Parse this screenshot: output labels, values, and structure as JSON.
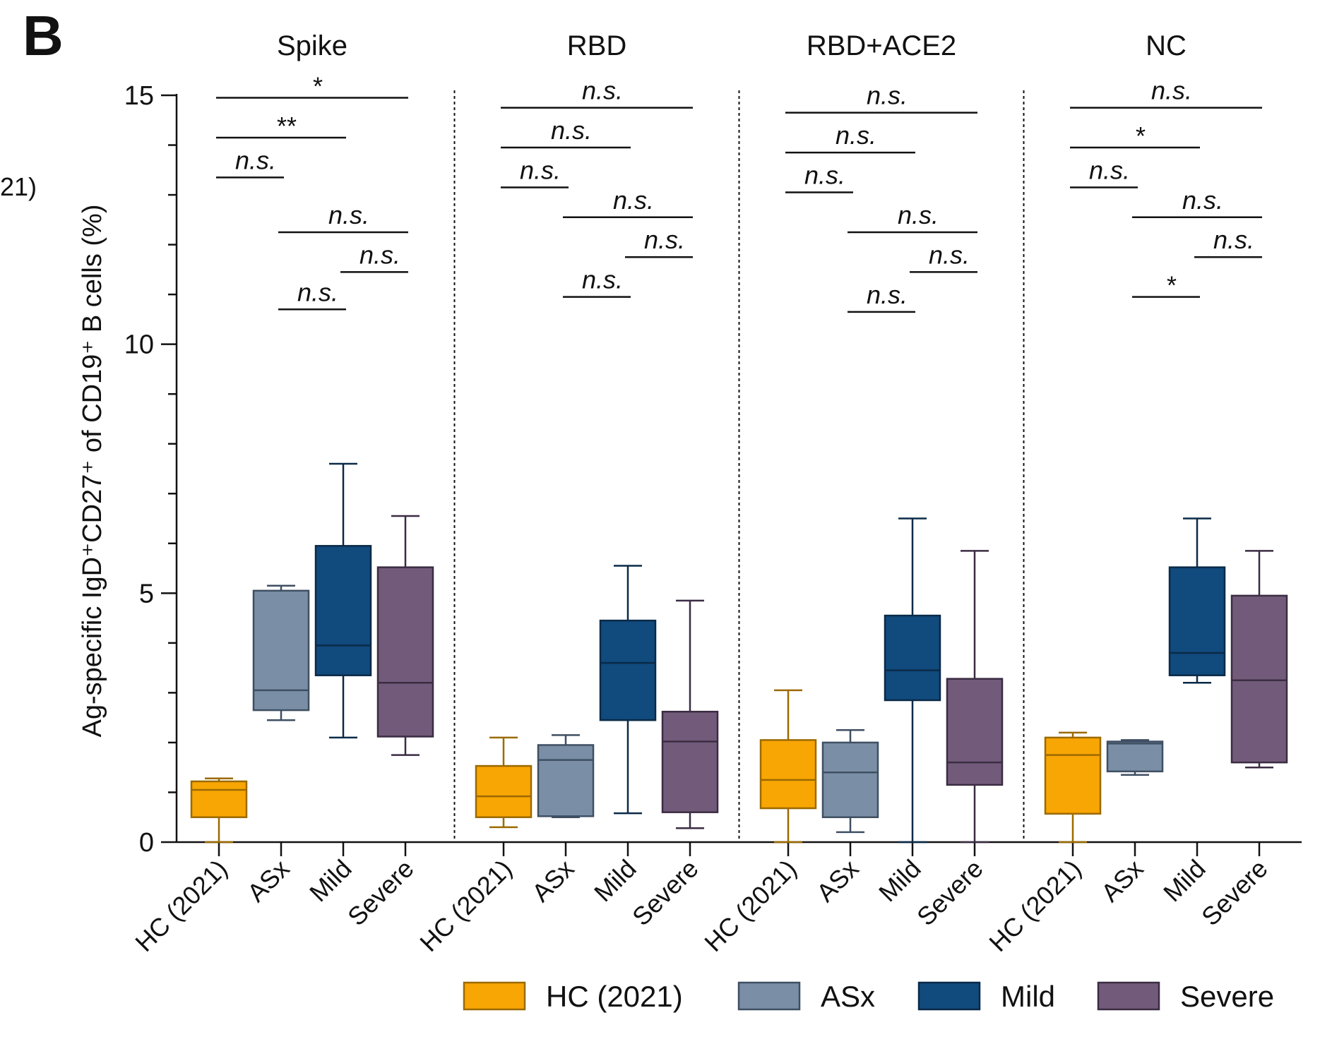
{
  "panel_letter": "B",
  "edge_fragment": "21)",
  "chart_data": {
    "type": "box",
    "ylabel": "Ag-specific IgD⁺CD27⁺ of CD19⁺ B cells (%)",
    "ylim": [
      0,
      15
    ],
    "yticks": [
      0,
      5,
      10,
      15
    ],
    "grid": false,
    "legend_position": "bottom-right",
    "groups": [
      "HC (2021)",
      "ASx",
      "Mild",
      "Severe"
    ],
    "colors": {
      "HC (2021)": "#F8A604",
      "ASx": "#7A8FA6",
      "Mild": "#114A7D",
      "Severe": "#725B7A"
    },
    "stroke_colors": {
      "HC (2021)": "#9C6A00",
      "ASx": "#3F4F63",
      "Mild": "#0A2A48",
      "Severe": "#3B2C42"
    },
    "panels": [
      {
        "title": "Spike",
        "boxes": [
          {
            "group": "HC (2021)",
            "min": 0,
            "q1": 0.5,
            "median": 1.05,
            "q3": 1.22,
            "max": 1.28
          },
          {
            "group": "ASx",
            "min": 2.45,
            "q1": 2.65,
            "median": 3.05,
            "q3": 5.05,
            "max": 5.15
          },
          {
            "group": "Mild",
            "min": 2.1,
            "q1": 3.35,
            "median": 3.95,
            "q3": 5.95,
            "max": 7.6
          },
          {
            "group": "Severe",
            "min": 1.75,
            "q1": 2.12,
            "median": 3.2,
            "q3": 5.52,
            "max": 6.55
          }
        ],
        "comparisons": [
          {
            "a": 0,
            "b": 3,
            "y": 14.95,
            "label": "*"
          },
          {
            "a": 0,
            "b": 2,
            "y": 14.15,
            "label": "**"
          },
          {
            "a": 0,
            "b": 1,
            "y": 13.35,
            "label": "n.s."
          },
          {
            "a": 1,
            "b": 3,
            "y": 12.25,
            "label": "n.s."
          },
          {
            "a": 2,
            "b": 3,
            "y": 11.45,
            "label": "n.s."
          },
          {
            "a": 1,
            "b": 2,
            "y": 10.7,
            "label": "n.s."
          }
        ]
      },
      {
        "title": "RBD",
        "boxes": [
          {
            "group": "HC (2021)",
            "min": 0.3,
            "q1": 0.5,
            "median": 0.92,
            "q3": 1.53,
            "max": 2.1
          },
          {
            "group": "ASx",
            "min": 0.5,
            "q1": 0.52,
            "median": 1.65,
            "q3": 1.95,
            "max": 2.15
          },
          {
            "group": "Mild",
            "min": 0.58,
            "q1": 2.45,
            "median": 3.6,
            "q3": 4.45,
            "max": 5.55
          },
          {
            "group": "Severe",
            "min": 0.28,
            "q1": 0.6,
            "median": 2.02,
            "q3": 2.62,
            "max": 4.85
          }
        ],
        "comparisons": [
          {
            "a": 0,
            "b": 3,
            "y": 14.75,
            "label": "n.s."
          },
          {
            "a": 0,
            "b": 2,
            "y": 13.95,
            "label": "n.s."
          },
          {
            "a": 0,
            "b": 1,
            "y": 13.15,
            "label": "n.s."
          },
          {
            "a": 1,
            "b": 3,
            "y": 12.55,
            "label": "n.s."
          },
          {
            "a": 2,
            "b": 3,
            "y": 11.75,
            "label": "n.s."
          },
          {
            "a": 1,
            "b": 2,
            "y": 10.95,
            "label": "n.s."
          }
        ]
      },
      {
        "title": "RBD+ACE2",
        "boxes": [
          {
            "group": "HC (2021)",
            "min": 0,
            "q1": 0.68,
            "median": 1.25,
            "q3": 2.05,
            "max": 3.05
          },
          {
            "group": "ASx",
            "min": 0.2,
            "q1": 0.5,
            "median": 1.4,
            "q3": 2.0,
            "max": 2.25
          },
          {
            "group": "Mild",
            "min": 0,
            "q1": 2.85,
            "median": 3.45,
            "q3": 4.55,
            "max": 6.5
          },
          {
            "group": "Severe",
            "min": 0,
            "q1": 1.15,
            "median": 1.6,
            "q3": 3.28,
            "max": 5.85
          }
        ],
        "comparisons": [
          {
            "a": 0,
            "b": 3,
            "y": 14.65,
            "label": "n.s."
          },
          {
            "a": 0,
            "b": 2,
            "y": 13.85,
            "label": "n.s."
          },
          {
            "a": 0,
            "b": 1,
            "y": 13.05,
            "label": "n.s."
          },
          {
            "a": 1,
            "b": 3,
            "y": 12.25,
            "label": "n.s."
          },
          {
            "a": 2,
            "b": 3,
            "y": 11.45,
            "label": "n.s."
          },
          {
            "a": 1,
            "b": 2,
            "y": 10.65,
            "label": "n.s."
          }
        ]
      },
      {
        "title": "NC",
        "boxes": [
          {
            "group": "HC (2021)",
            "min": 0,
            "q1": 0.57,
            "median": 1.75,
            "q3": 2.1,
            "max": 2.2
          },
          {
            "group": "ASx",
            "min": 1.35,
            "q1": 1.42,
            "median": 1.98,
            "q3": 2.02,
            "max": 2.05
          },
          {
            "group": "Mild",
            "min": 3.2,
            "q1": 3.35,
            "median": 3.8,
            "q3": 5.52,
            "max": 6.5
          },
          {
            "group": "Severe",
            "min": 1.5,
            "q1": 1.6,
            "median": 3.25,
            "q3": 4.95,
            "max": 5.85
          }
        ],
        "comparisons": [
          {
            "a": 0,
            "b": 3,
            "y": 14.75,
            "label": "n.s."
          },
          {
            "a": 0,
            "b": 2,
            "y": 13.95,
            "label": "*"
          },
          {
            "a": 0,
            "b": 1,
            "y": 13.15,
            "label": "n.s."
          },
          {
            "a": 1,
            "b": 3,
            "y": 12.55,
            "label": "n.s."
          },
          {
            "a": 2,
            "b": 3,
            "y": 11.75,
            "label": "n.s."
          },
          {
            "a": 1,
            "b": 2,
            "y": 10.95,
            "label": "*"
          }
        ]
      }
    ]
  }
}
